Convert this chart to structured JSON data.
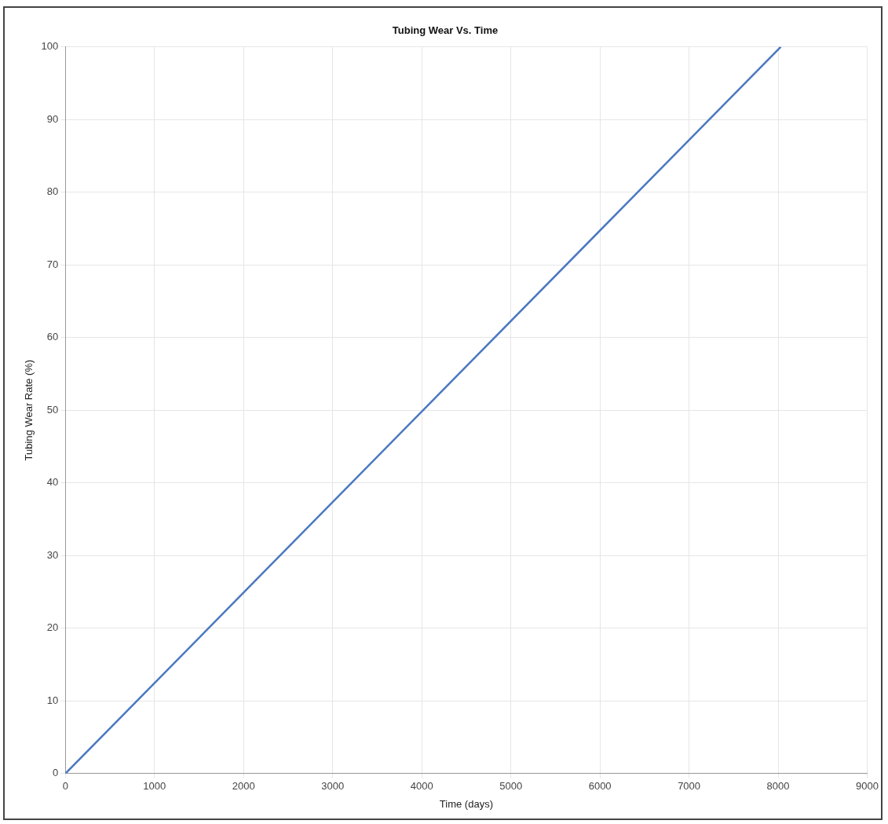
{
  "chart_data": {
    "type": "line",
    "title": "Tubing Wear Vs. Time",
    "xlabel": "Time (days)",
    "ylabel": "Tubing Wear Rate (%)",
    "x": [
      0,
      8030
    ],
    "series": [
      {
        "color": "#4a78c0",
        "values": [
          0,
          100
        ]
      }
    ],
    "xlim": [
      0,
      9000
    ],
    "xticks": [
      0,
      1000,
      2000,
      3000,
      4000,
      5000,
      6000,
      7000,
      8000,
      9000
    ],
    "ylim": [
      0,
      100
    ],
    "yticks": [
      0,
      10,
      20,
      30,
      40,
      50,
      60,
      70,
      80,
      90,
      100
    ],
    "grid": true,
    "legend": false,
    "marker": "none",
    "line_style": "solid"
  }
}
